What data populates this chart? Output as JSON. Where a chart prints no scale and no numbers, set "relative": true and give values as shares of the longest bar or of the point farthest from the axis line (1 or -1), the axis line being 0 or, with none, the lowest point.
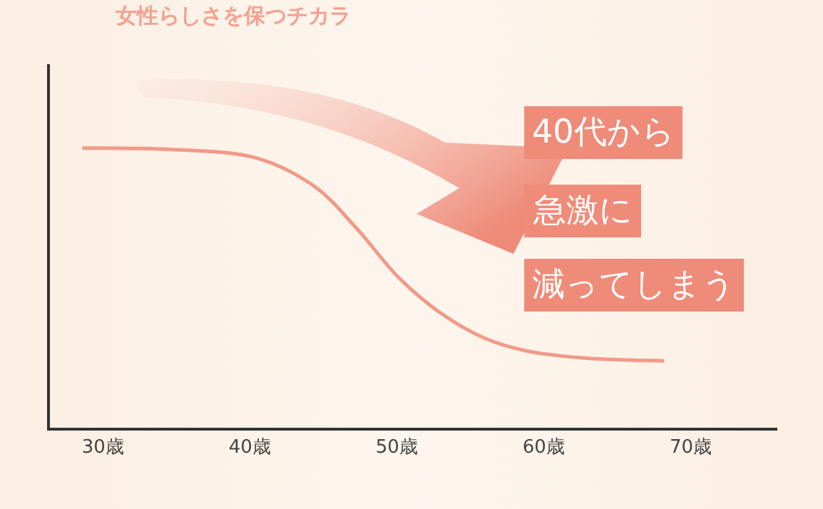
{
  "chart_data": {
    "type": "line",
    "title": "女性らしさを保つチカラ",
    "relative": true,
    "x": [
      28.6,
      34.7,
      40.5,
      44.4,
      47.3,
      50.2,
      53.1,
      56.0,
      58.9,
      62.8,
      68.2
    ],
    "series": [
      {
        "color": "#f19a88",
        "values": [
          1,
          0.995,
          0.964,
          0.863,
          0.711,
          0.533,
          0.406,
          0.32,
          0.274,
          0.249,
          0.239
        ]
      }
    ],
    "xlim": [
      26.4,
      75.9
    ],
    "xticks": [
      {
        "value": 30,
        "label": "30歳"
      },
      {
        "value": 40,
        "label": "40歳"
      },
      {
        "value": 50,
        "label": "50歳"
      },
      {
        "value": 60,
        "label": "60歳"
      },
      {
        "value": 70,
        "label": "70歳"
      }
    ],
    "tick_labels": "x",
    "legend": false,
    "marker": "none",
    "line_style": "solid",
    "annotations": [
      "40代から",
      "急激に",
      "減ってしまう"
    ]
  }
}
